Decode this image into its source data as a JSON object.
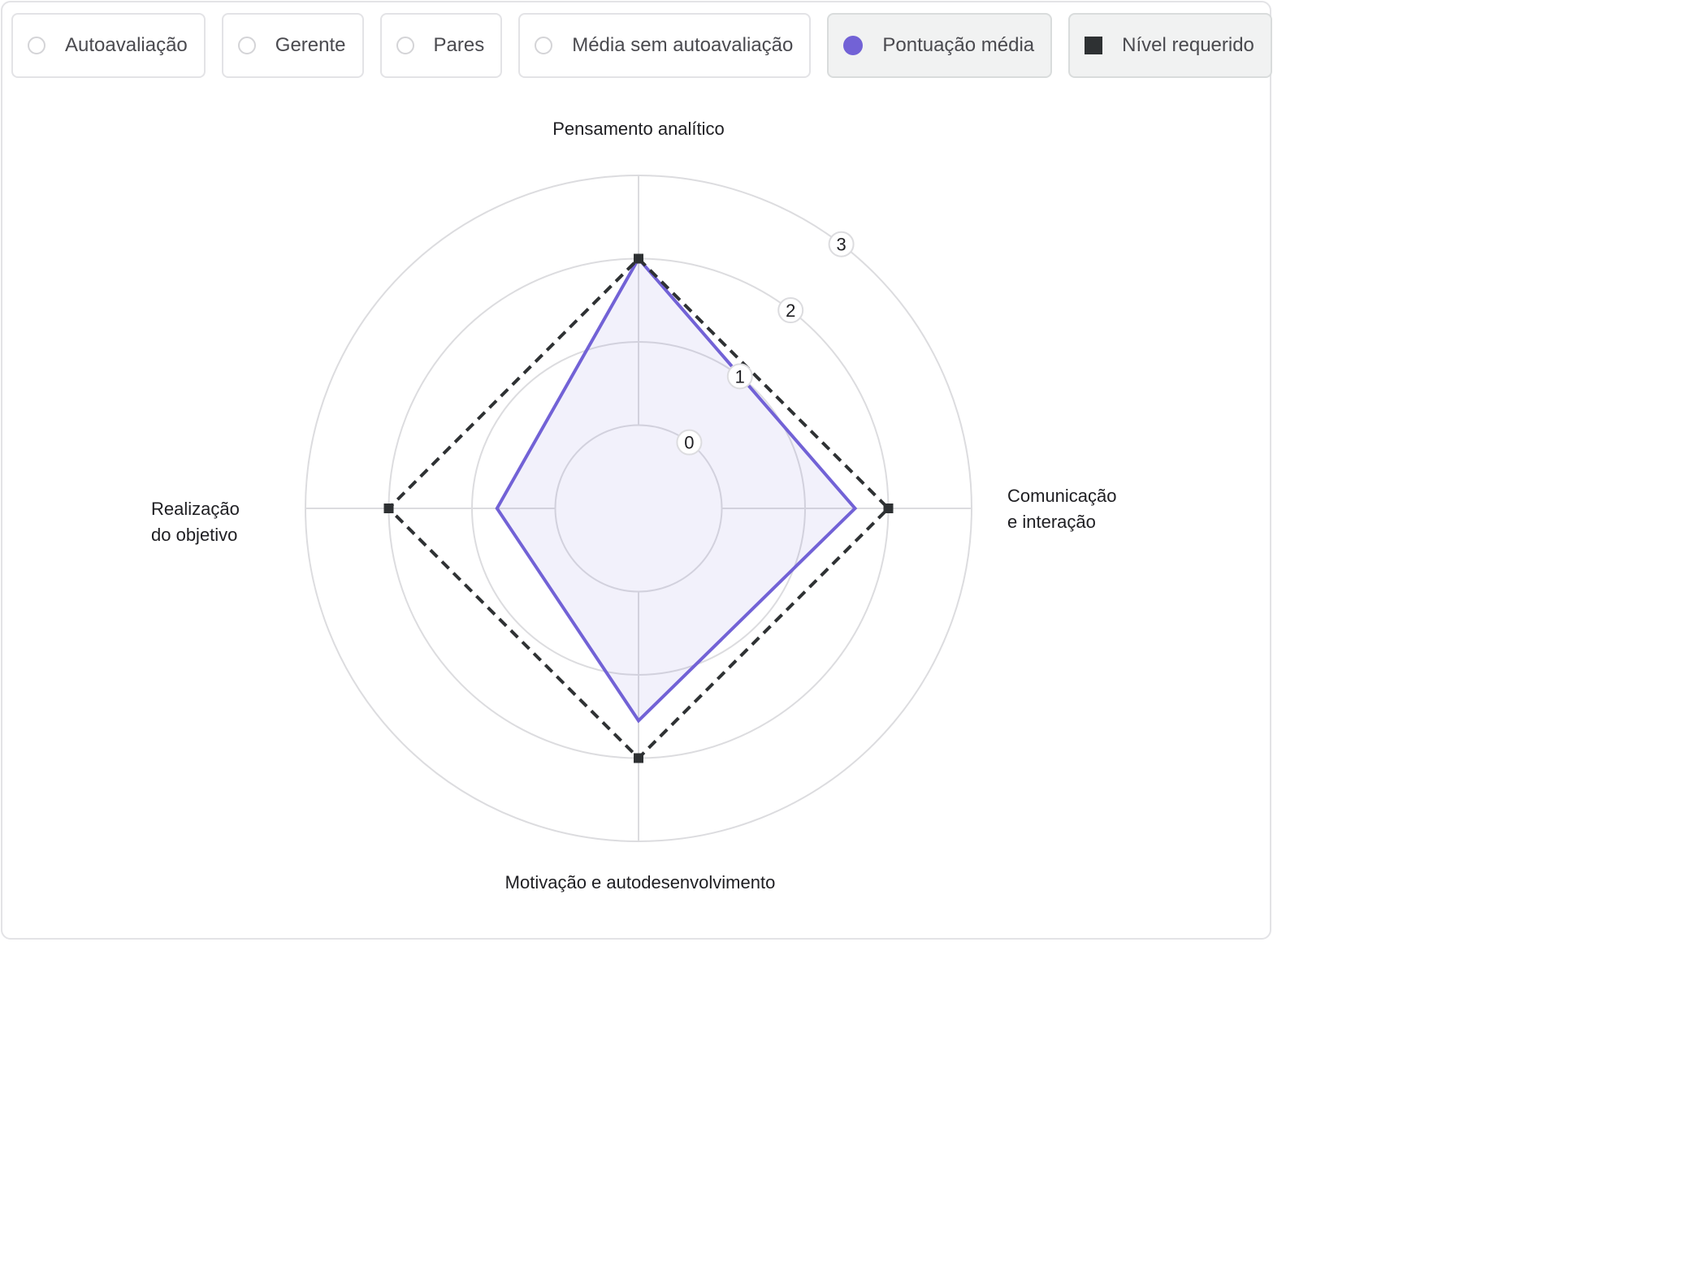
{
  "legend": {
    "items": [
      {
        "label": "Autoavaliação",
        "state": "unselected"
      },
      {
        "label": "Gerente",
        "state": "unselected"
      },
      {
        "label": "Pares",
        "state": "unselected"
      },
      {
        "label": "Média sem autoavaliação",
        "state": "unselected"
      },
      {
        "label": "Pontuação média",
        "state": "selected",
        "color": "#7262d6"
      },
      {
        "label": "Nível requerido",
        "state": "selected",
        "color": "#2e3133"
      }
    ]
  },
  "chart_data": {
    "type": "radar",
    "axes": [
      {
        "label": [
          "Pensamento analítico"
        ]
      },
      {
        "label": [
          "Comunicação",
          "e interação"
        ]
      },
      {
        "label": [
          "Motivação e autodesenvolvimento"
        ]
      },
      {
        "label": [
          "Realização",
          "do objetivo"
        ]
      }
    ],
    "radial_ticks": [
      0,
      1,
      2,
      3
    ],
    "range": [
      -1,
      3
    ],
    "grid": true,
    "series": [
      {
        "name": "Pontuação média",
        "values": [
          2,
          1.6,
          1.55,
          0.7
        ],
        "color": "#7262d6",
        "fill": "rgba(114,98,214,0.09)",
        "style": "solid"
      },
      {
        "name": "Nível requerido",
        "values": [
          2,
          2,
          2,
          2
        ],
        "color": "#2e3133",
        "style": "dashed"
      }
    ]
  }
}
